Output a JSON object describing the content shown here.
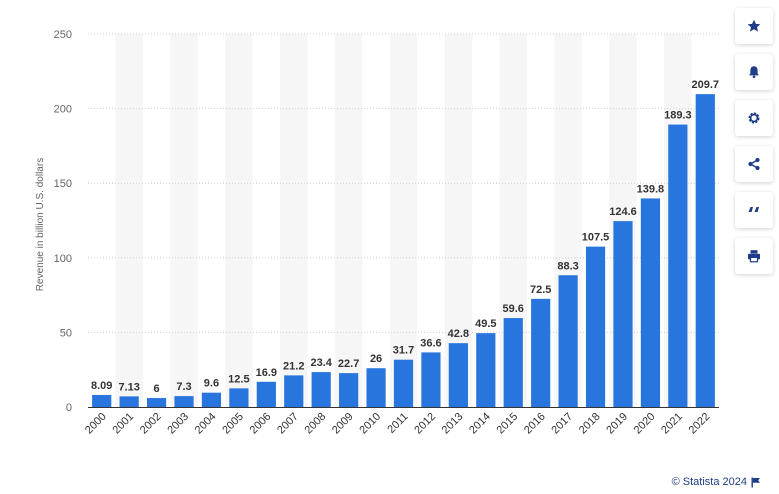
{
  "chart_data": {
    "type": "bar",
    "categories": [
      "2000",
      "2001",
      "2002",
      "2003",
      "2004",
      "2005",
      "2006",
      "2007",
      "2008",
      "2009",
      "2010",
      "2011",
      "2012",
      "2013",
      "2014",
      "2015",
      "2016",
      "2017",
      "2018",
      "2019",
      "2020",
      "2021",
      "2022"
    ],
    "values": [
      8.09,
      7.13,
      6,
      7.3,
      9.6,
      12.5,
      16.9,
      21.2,
      23.4,
      22.7,
      26,
      31.7,
      36.6,
      42.8,
      49.5,
      59.6,
      72.5,
      88.3,
      107.5,
      124.6,
      139.8,
      189.3,
      209.7
    ],
    "value_labels": [
      "8.09",
      "7.13",
      "6",
      "7.3",
      "9.6",
      "12.5",
      "16.9",
      "21.2",
      "23.4",
      "22.7",
      "26",
      "31.7",
      "36.6",
      "42.8",
      "49.5",
      "59.6",
      "72.5",
      "88.3",
      "107.5",
      "124.6",
      "139.8",
      "189.3",
      "209.7"
    ],
    "title": "",
    "xlabel": "",
    "ylabel": "Revenue in billion U.S. dollars",
    "ylim": [
      0,
      250
    ],
    "yticks": [
      "0",
      "50",
      "100",
      "150",
      "200",
      "250"
    ],
    "grid": true,
    "bar_color": "#2876dd"
  },
  "toolbar": {
    "buttons": [
      {
        "name": "star-icon"
      },
      {
        "name": "bell-icon"
      },
      {
        "name": "gear-icon"
      },
      {
        "name": "share-icon"
      },
      {
        "name": "quote-icon"
      },
      {
        "name": "print-icon"
      }
    ]
  },
  "footer": {
    "credit": "© Statista 2024",
    "flag_icon": "flag-icon",
    "credit_color": "#1f3c88"
  }
}
